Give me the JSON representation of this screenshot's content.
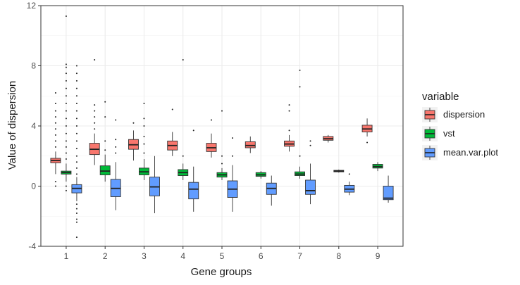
{
  "chart_data": {
    "type": "boxplot",
    "xlabel": "Gene groups",
    "ylabel": "Value of dispersion",
    "categories": [
      "1",
      "2",
      "3",
      "4",
      "5",
      "6",
      "7",
      "8",
      "9"
    ],
    "ylim": [
      -4,
      12
    ],
    "yticks": [
      -4,
      0,
      4,
      8,
      12
    ],
    "grid": true,
    "legend": {
      "title": "variable",
      "position": "right",
      "entries": [
        "dispersion",
        "vst",
        "mean.var.plot"
      ]
    },
    "series": [
      {
        "name": "dispersion",
        "color": "#F8766D",
        "boxes": [
          {
            "min": 0.8,
            "q1": 1.55,
            "median": 1.7,
            "q3": 1.85,
            "max": 2.3,
            "outliers": [
              0.0,
              0.3,
              2.6,
              3.0,
              3.4,
              3.8,
              4.2,
              4.6,
              5.0,
              5.5,
              6.2
            ]
          },
          {
            "min": 1.4,
            "q1": 2.1,
            "median": 2.45,
            "q3": 2.85,
            "max": 3.5,
            "outliers": [
              3.8,
              4.2,
              4.6,
              5.0,
              5.4,
              8.4
            ]
          },
          {
            "min": 1.7,
            "q1": 2.45,
            "median": 2.75,
            "q3": 3.1,
            "max": 3.7,
            "outliers": [
              4.2
            ]
          },
          {
            "min": 2.0,
            "q1": 2.4,
            "median": 2.7,
            "q3": 3.0,
            "max": 3.6,
            "outliers": [
              5.1
            ]
          },
          {
            "min": 1.9,
            "q1": 2.3,
            "median": 2.55,
            "q3": 2.85,
            "max": 3.5,
            "outliers": [
              4.4
            ]
          },
          {
            "min": 2.2,
            "q1": 2.55,
            "median": 2.7,
            "q3": 2.95,
            "max": 3.3,
            "outliers": []
          },
          {
            "min": 2.3,
            "q1": 2.65,
            "median": 2.8,
            "q3": 3.0,
            "max": 3.4,
            "outliers": [
              3.7,
              5.0,
              5.4
            ]
          },
          {
            "min": 2.9,
            "q1": 3.05,
            "median": 3.15,
            "q3": 3.3,
            "max": 3.4,
            "outliers": []
          },
          {
            "min": 3.3,
            "q1": 3.6,
            "median": 3.8,
            "q3": 4.05,
            "max": 4.5,
            "outliers": [
              2.9
            ]
          }
        ]
      },
      {
        "name": "vst",
        "color": "#00BA38",
        "boxes": [
          {
            "min": 0.3,
            "q1": 0.8,
            "median": 0.9,
            "q3": 1.0,
            "max": 1.5,
            "outliers": [
              -0.3,
              0.0,
              1.8,
              2.2,
              2.6,
              3.0,
              3.5,
              4.0,
              4.5,
              5.0,
              5.5,
              6.0,
              6.5,
              7.0,
              7.5,
              7.9,
              8.1,
              11.3
            ]
          },
          {
            "min": 0.3,
            "q1": 0.75,
            "median": 1.0,
            "q3": 1.35,
            "max": 2.1,
            "outliers": [
              2.4,
              3.0,
              4.6,
              5.6
            ]
          },
          {
            "min": 0.4,
            "q1": 0.75,
            "median": 0.95,
            "q3": 1.2,
            "max": 1.8,
            "outliers": [
              2.2,
              2.8,
              3.3,
              4.0,
              4.5,
              5.5
            ]
          },
          {
            "min": 0.4,
            "q1": 0.7,
            "median": 0.9,
            "q3": 1.1,
            "max": 1.5,
            "outliers": [
              2.0,
              8.4
            ]
          },
          {
            "min": 0.4,
            "q1": 0.6,
            "median": 0.75,
            "q3": 0.9,
            "max": 1.2,
            "outliers": [
              1.5,
              2.0,
              5.0
            ]
          },
          {
            "min": 0.5,
            "q1": 0.65,
            "median": 0.75,
            "q3": 0.9,
            "max": 1.0,
            "outliers": []
          },
          {
            "min": 0.5,
            "q1": 0.7,
            "median": 0.8,
            "q3": 0.95,
            "max": 1.3,
            "outliers": [
              2.0,
              6.6,
              7.7
            ]
          },
          {
            "min": 0.9,
            "q1": 0.95,
            "median": 1.0,
            "q3": 1.05,
            "max": 1.1,
            "outliers": []
          },
          {
            "min": 1.0,
            "q1": 1.2,
            "median": 1.3,
            "q3": 1.45,
            "max": 1.6,
            "outliers": []
          }
        ]
      },
      {
        "name": "mean.var.plot",
        "color": "#619CFF",
        "boxes": [
          {
            "min": -1.0,
            "q1": -0.45,
            "median": -0.15,
            "q3": 0.1,
            "max": 0.6,
            "outliers": [
              -1.2,
              -1.5,
              -1.8,
              -2.2,
              -2.4,
              -3.4,
              0.8,
              1.2,
              1.6,
              2.0,
              2.5,
              3.0,
              3.5,
              4.0,
              4.5,
              5.0,
              5.5,
              6.0,
              6.5,
              7.0,
              7.5,
              8.0
            ]
          },
          {
            "min": -1.6,
            "q1": -0.7,
            "median": -0.15,
            "q3": 0.45,
            "max": 1.6,
            "outliers": [
              2.2,
              2.6,
              3.1,
              4.4
            ]
          },
          {
            "min": -1.8,
            "q1": -0.65,
            "median": -0.05,
            "q3": 0.6,
            "max": 2.0,
            "outliers": []
          },
          {
            "min": -1.7,
            "q1": -0.85,
            "median": -0.2,
            "q3": 0.25,
            "max": 1.3,
            "outliers": [
              3.7
            ]
          },
          {
            "min": -1.7,
            "q1": -0.75,
            "median": -0.2,
            "q3": 0.35,
            "max": 1.4,
            "outliers": [
              2.0,
              3.2
            ]
          },
          {
            "min": -1.3,
            "q1": -0.55,
            "median": -0.15,
            "q3": 0.2,
            "max": 0.7,
            "outliers": []
          },
          {
            "min": -1.2,
            "q1": -0.55,
            "median": -0.3,
            "q3": 0.4,
            "max": 1.5,
            "outliers": [
              2.7,
              3.0
            ]
          },
          {
            "min": -0.6,
            "q1": -0.4,
            "median": -0.2,
            "q3": 0.05,
            "max": 0.3,
            "outliers": [
              0.8
            ]
          },
          {
            "min": -1.1,
            "q1": -0.9,
            "median": -0.8,
            "q3": 0.0,
            "max": 0.7,
            "outliers": []
          }
        ]
      }
    ]
  }
}
